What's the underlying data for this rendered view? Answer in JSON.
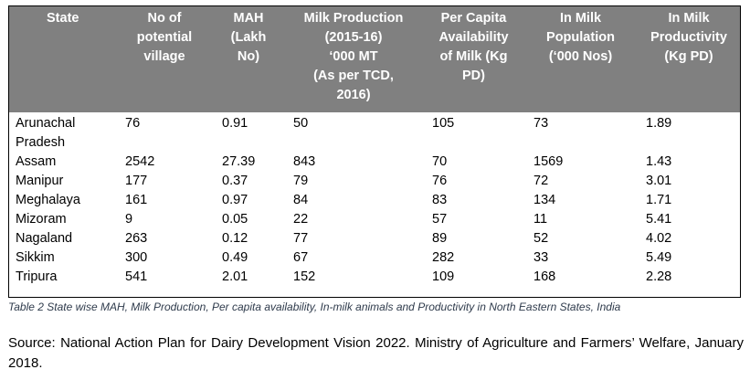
{
  "table": {
    "headers": [
      "State",
      "No of\npotential\nvillage",
      "MAH\n(Lakh\nNo)",
      "Milk Production\n(2015-16)\n‘000 MT\n(As per TCD,\n2016)",
      "Per Capita\nAvailability\nof Milk (Kg\nPD)",
      "In Milk\nPopulation\n(‘000 Nos)",
      "In Milk\nProductivity\n(Kg PD)"
    ],
    "rows": [
      [
        "Arunachal\nPradesh",
        "76",
        "0.91",
        "50",
        "105",
        "73",
        "1.89"
      ],
      [
        "Assam",
        "2542",
        "27.39",
        "843",
        "70",
        "1569",
        "1.43"
      ],
      [
        "Manipur",
        "177",
        "0.37",
        "79",
        "76",
        "72",
        "3.01"
      ],
      [
        "Meghalaya",
        "161",
        "0.97",
        "84",
        "83",
        "134",
        "1.71"
      ],
      [
        "Mizoram",
        "9",
        "0.05",
        "22",
        "57",
        "11",
        "5.41"
      ],
      [
        "Nagaland",
        "263",
        "0.12",
        "77",
        "89",
        "52",
        "4.02"
      ],
      [
        "Sikkim",
        "300",
        "0.49",
        "67",
        "282",
        "33",
        "5.49"
      ],
      [
        "Tripura",
        "541",
        "2.01",
        "152",
        "109",
        "168",
        "2.28"
      ]
    ]
  },
  "caption": "Table 2 State wise MAH, Milk Production, Per capita availability, In-milk animals and Productivity in North Eastern States, India",
  "source": "Source: National Action Plan for Dairy Development Vision 2022. Ministry of Agriculture and Farmers’ Welfare, January 2018.",
  "colors": {
    "header_bg": "#808080",
    "header_text": "#ffffff",
    "caption_text": "#2f3b4c"
  }
}
